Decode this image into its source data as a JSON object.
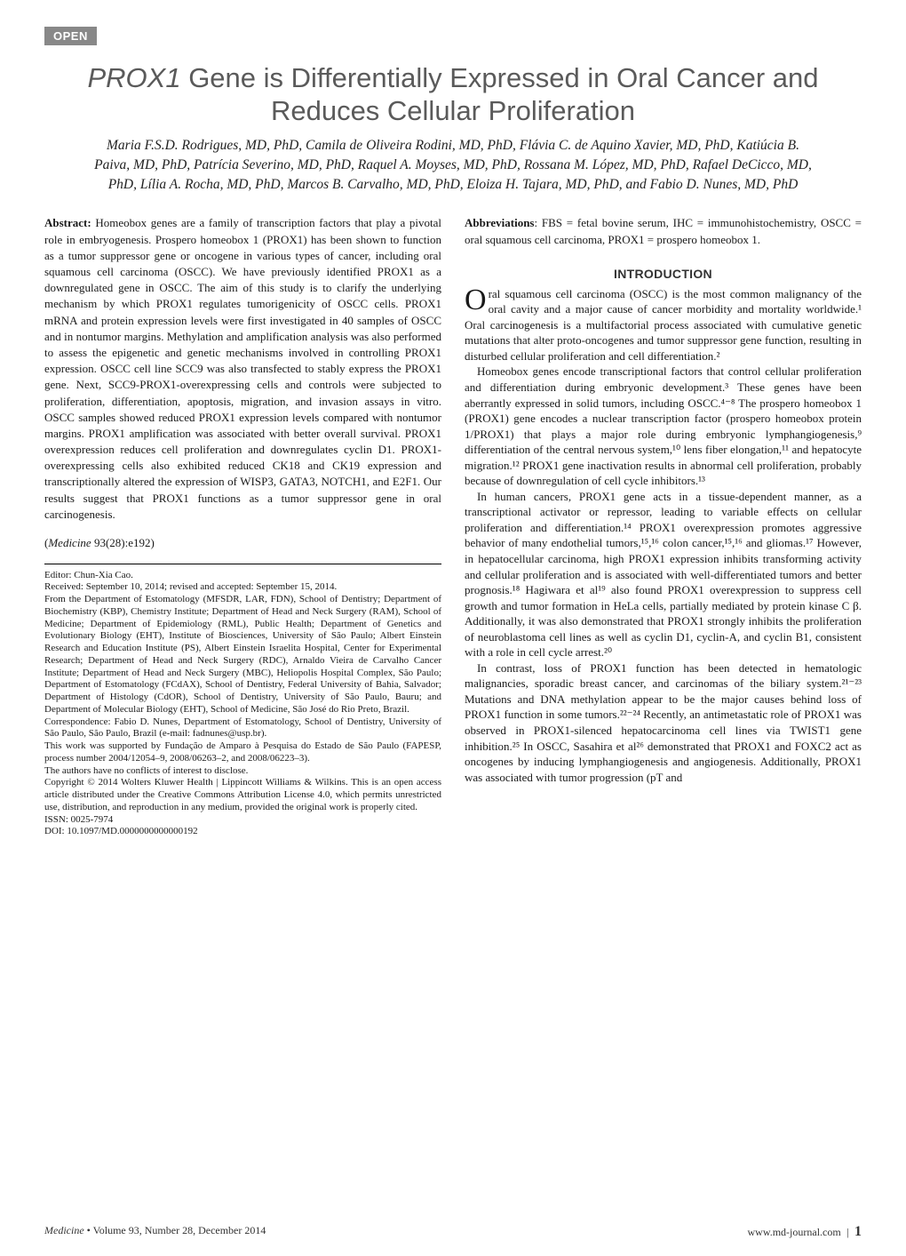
{
  "badge": {
    "label": "OPEN",
    "bg_color": "#888888",
    "fg_color": "#ffffff"
  },
  "title": {
    "gene": "PROX1",
    "rest": " Gene is Differentially Expressed in Oral Cancer and Reduces Cellular Proliferation",
    "color": "#5a5a5a",
    "fontsize": 31
  },
  "authors": "Maria F.S.D. Rodrigues, MD, PhD, Camila de Oliveira Rodini, MD, PhD, Flávia C. de Aquino Xavier, MD, PhD, Katiúcia B. Paiva, MD, PhD, Patrícia Severino, MD, PhD, Raquel A. Moyses, MD, PhD, Rossana M. López, MD, PhD, Rafael DeCicco, MD, PhD, Lília A. Rocha, MD, PhD, Marcos B. Carvalho, MD, PhD, Eloiza H. Tajara, MD, PhD, and Fabio D. Nunes, MD, PhD",
  "abstract": {
    "label": "Abstract:",
    "text": "Homeobox genes are a family of transcription factors that play a pivotal role in embryogenesis. Prospero homeobox 1 (PROX1) has been shown to function as a tumor suppressor gene or oncogene in various types of cancer, including oral squamous cell carcinoma (OSCC). We have previously identified PROX1 as a downregulated gene in OSCC. The aim of this study is to clarify the underlying mechanism by which PROX1 regulates tumorigenicity of OSCC cells. PROX1 mRNA and protein expression levels were first investigated in 40 samples of OSCC and in nontumor margins. Methylation and amplification analysis was also performed to assess the epigenetic and genetic mechanisms involved in controlling PROX1 expression. OSCC cell line SCC9 was also transfected to stably express the PROX1 gene. Next, SCC9-PROX1-overexpressing cells and controls were subjected to proliferation, differentiation, apoptosis, migration, and invasion assays in vitro. OSCC samples showed reduced PROX1 expression levels compared with nontumor margins. PROX1 amplification was associated with better overall survival. PROX1 overexpression reduces cell proliferation and downregulates cyclin D1. PROX1-overexpressing cells also exhibited reduced CK18 and CK19 expression and transcriptionally altered the expression of WISP3, GATA3, NOTCH1, and E2F1. Our results suggest that PROX1 functions as a tumor suppressor gene in oral carcinogenesis."
  },
  "citation": {
    "journal": "Medicine",
    "ref": "93(28):e192"
  },
  "footnotes": {
    "editor": "Editor: Chun-Xia Cao.",
    "received": "Received: September 10, 2014; revised and accepted: September 15, 2014.",
    "affiliation": "From the Department of Estomatology (MFSDR, LAR, FDN), School of Dentistry; Department of Biochemistry (KBP), Chemistry Institute; Department of Head and Neck Surgery (RAM), School of Medicine; Department of Epidemiology (RML), Public Health; Department of Genetics and Evolutionary Biology (EHT), Institute of Biosciences, University of São Paulo; Albert Einstein Research and Education Institute (PS), Albert Einstein Israelita Hospital, Center for Experimental Research; Department of Head and Neck Surgery (RDC), Arnaldo Vieira de Carvalho Cancer Institute; Department of Head and Neck Surgery (MBC), Heliopolis Hospital Complex, São Paulo; Department of Estomatology (FCdAX), School of Dentistry, Federal University of Bahia, Salvador; Department of Histology (CdOR), School of Dentistry, University of São Paulo, Bauru; and Department of Molecular Biology (EHT), School of Medicine, São José do Rio Preto, Brazil.",
    "correspondence": "Correspondence: Fabio D. Nunes, Department of Estomatology, School of Dentistry, University of São Paulo, São Paulo, Brazil (e-mail: fadnunes@usp.br).",
    "funding": "This work was supported by Fundação de Amparo à Pesquisa do Estado de São Paulo (FAPESP, process number 2004/12054–9, 2008/06263–2, and 2008/06223–3).",
    "conflicts": "The authors have no conflicts of interest to disclose.",
    "copyright": "Copyright © 2014 Wolters Kluwer Health | Lippincott Williams & Wilkins. This is an open access article distributed under the Creative Commons Attribution License 4.0, which permits unrestricted use, distribution, and reproduction in any medium, provided the original work is properly cited.",
    "issn": "ISSN: 0025-7974",
    "doi": "DOI: 10.1097/MD.0000000000000192"
  },
  "abbrev": {
    "label": "Abbreviations",
    "text": ": FBS = fetal bovine serum, IHC = immunohistochemistry, OSCC = oral squamous cell carcinoma, PROX1 = prospero homeobox 1."
  },
  "intro": {
    "heading": "INTRODUCTION",
    "p1_dropcap": "O",
    "p1": "ral squamous cell carcinoma (OSCC) is the most common malignancy of the oral cavity and a major cause of cancer morbidity and mortality worldwide.¹ Oral carcinogenesis is a multifactorial process associated with cumulative genetic mutations that alter proto-oncogenes and tumor suppressor gene function, resulting in disturbed cellular proliferation and cell differentiation.²",
    "p2": "Homeobox genes encode transcriptional factors that control cellular proliferation and differentiation during embryonic development.³ These genes have been aberrantly expressed in solid tumors, including OSCC.⁴⁻⁸ The prospero homeobox 1 (PROX1) gene encodes a nuclear transcription factor (prospero homeobox protein 1/PROX1) that plays a major role during embryonic lymphangiogenesis,⁹ differentiation of the central nervous system,¹⁰ lens fiber elongation,¹¹ and hepatocyte migration.¹² PROX1 gene inactivation results in abnormal cell proliferation, probably because of downregulation of cell cycle inhibitors.¹³",
    "p3": "In human cancers, PROX1 gene acts in a tissue-dependent manner, as a transcriptional activator or repressor, leading to variable effects on cellular proliferation and differentiation.¹⁴ PROX1 overexpression promotes aggressive behavior of many endothelial tumors,¹⁵,¹⁶ colon cancer,¹⁵,¹⁶ and gliomas.¹⁷ However, in hepatocellular carcinoma, high PROX1 expression inhibits transforming activity and cellular proliferation and is associated with well-differentiated tumors and better prognosis.¹⁸ Hagiwara et al¹⁹ also found PROX1 overexpression to suppress cell growth and tumor formation in HeLa cells, partially mediated by protein kinase C β. Additionally, it was also demonstrated that PROX1 strongly inhibits the proliferation of neuroblastoma cell lines as well as cyclin D1, cyclin-A, and cyclin B1, consistent with a role in cell cycle arrest.²⁰",
    "p4": "In contrast, loss of PROX1 function has been detected in hematologic malignancies, sporadic breast cancer, and carcinomas of the biliary system.²¹⁻²³ Mutations and DNA methylation appear to be the major causes behind loss of PROX1 function in some tumors.²²⁻²⁴ Recently, an antimetastatic role of PROX1 was observed in PROX1-silenced hepatocarcinoma cell lines via TWIST1 gene inhibition.²⁵ In OSCC, Sasahira et al²⁶ demonstrated that PROX1 and FOXC2 act as oncogenes by inducing lymphangiogenesis and angiogenesis. Additionally, PROX1 was associated with tumor progression (pT and"
  },
  "footer": {
    "left_journal": "Medicine",
    "left_rest": " • Volume 93, Number 28, December 2014",
    "right_url": "www.md-journal.com",
    "page": "1"
  },
  "colors": {
    "body_bg": "#ffffff",
    "text": "#1a1a1a",
    "title": "#5a5a5a",
    "badge_bg": "#888888",
    "badge_fg": "#ffffff",
    "rule": "#000000"
  },
  "typography": {
    "body_fontsize": 13,
    "title_fontsize": 31,
    "authors_fontsize": 15.5,
    "footnote_fontsize": 11,
    "heading_fontsize": 14,
    "footer_fontsize": 12
  }
}
